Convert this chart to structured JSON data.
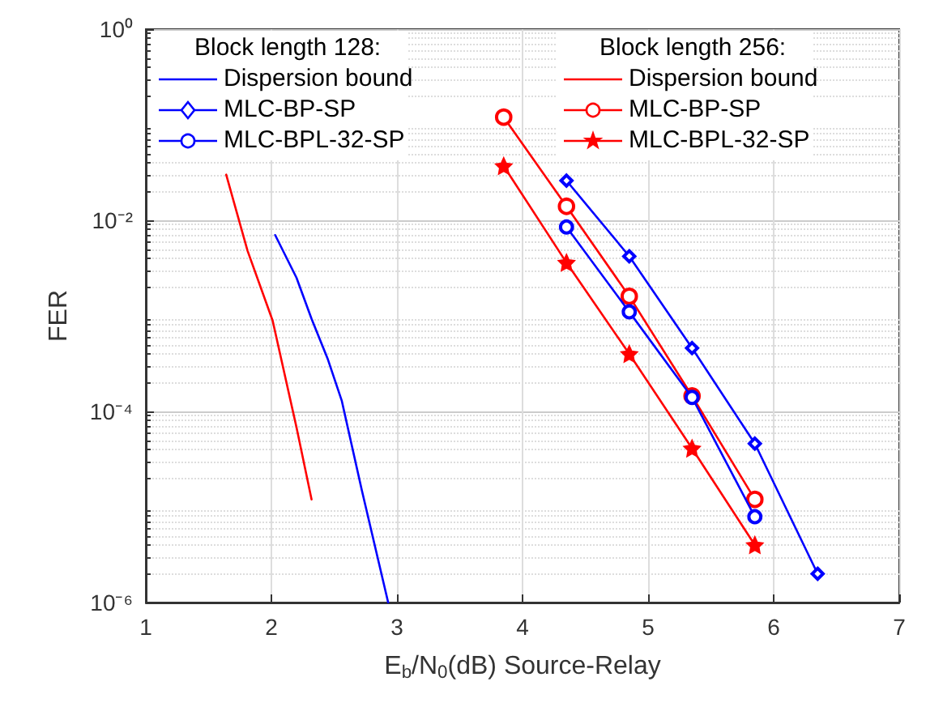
{
  "chart_data": {
    "type": "line",
    "xlabel": "E$_{b}$/N$_{0}$(dB) Source-Relay",
    "ylabel": "FER",
    "log": "y",
    "grid": true,
    "legend": "top right",
    "line_style": "solid",
    "xlim": [
      1,
      7
    ],
    "xticks": [
      1,
      2,
      3,
      4,
      5,
      6,
      7
    ],
    "ylim": [
      1e-06,
      1
    ],
    "yticks": [
      {
        "value": 1e-06,
        "label": "10⁻⁶"
      },
      {
        "value": 0.0001,
        "label": "10⁻⁴"
      },
      {
        "value": 0.01,
        "label": "10⁻²"
      },
      {
        "value": 1,
        "label": "10⁰"
      }
    ],
    "annotations": [
      "Block length 128:",
      "Block length 256:"
    ],
    "series": [
      {
        "name": "Dispersion bound",
        "color": "#0000ff",
        "marker": "none",
        "x": [
          2.03,
          2.2,
          2.32,
          2.45,
          2.56,
          2.72,
          2.93
        ],
        "values": [
          0.007,
          0.0025,
          0.00093,
          0.00035,
          0.00013,
          1.5e-05,
          1e-06
        ]
      },
      {
        "name": "MLC-BP-SP",
        "color": "#0000ff",
        "marker": "diamond",
        "x": [
          4.35,
          4.85,
          5.35,
          5.85,
          6.35
        ],
        "values": [
          0.026,
          0.0042,
          0.00046,
          4.6e-05,
          2e-06
        ]
      },
      {
        "name": "MLC-BPL-32-SP",
        "color": "#0000ff",
        "marker": "circle",
        "x": [
          4.35,
          4.85,
          5.35,
          5.85
        ],
        "values": [
          0.0085,
          0.0011,
          0.00014,
          7.9e-06
        ]
      },
      {
        "name": "Dispersion bound",
        "color": "#ff0000",
        "marker": "none",
        "x": [
          1.64,
          1.81,
          2.01,
          2.2,
          2.32
        ],
        "values": [
          0.03,
          0.0048,
          0.00089,
          6.8e-05,
          1.2e-05
        ]
      },
      {
        "name": "MLC-BP-SP",
        "color": "#ff0000",
        "marker": "circle",
        "x": [
          3.85,
          4.35,
          4.85,
          5.35,
          5.85
        ],
        "values": [
          0.12,
          0.014,
          0.0016,
          0.000145,
          1.2e-05
        ]
      },
      {
        "name": "MLC-BPL-32-SP",
        "color": "#ff0000",
        "marker": "star",
        "x": [
          3.85,
          4.35,
          4.85,
          5.35,
          5.85
        ],
        "values": [
          0.037,
          0.0036,
          0.0004,
          4.1e-05,
          4e-06
        ]
      }
    ]
  }
}
